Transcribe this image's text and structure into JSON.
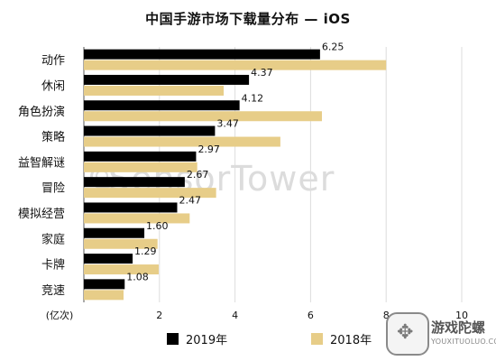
{
  "chart_data": {
    "type": "bar",
    "orientation": "horizontal",
    "title": "中国手游市场下载量分布 — iOS",
    "xlabel": "(亿次)",
    "categories": [
      "动作",
      "休闲",
      "角色扮演",
      "策略",
      "益智解谜",
      "冒险",
      "模拟经营",
      "家庭",
      "卡牌",
      "竞速"
    ],
    "series": [
      {
        "name": "2019年",
        "color": "#000000",
        "values": [
          6.25,
          4.37,
          4.12,
          3.47,
          2.97,
          2.67,
          2.47,
          1.6,
          1.29,
          1.08
        ],
        "labels": [
          "6.25",
          "4.37",
          "4.12",
          "3.47",
          "2.97",
          "2.67",
          "2.47",
          "1.60",
          "1.29",
          "1.08"
        ]
      },
      {
        "name": "2018年",
        "color": "#e7cd88",
        "values": [
          8.0,
          3.7,
          6.3,
          5.2,
          3.0,
          3.5,
          2.8,
          1.95,
          1.98,
          1.05
        ]
      }
    ],
    "xlim": [
      0,
      10
    ],
    "xticks": [
      2,
      4,
      6,
      8,
      10
    ],
    "xtick_labels": [
      "2",
      "4",
      "6",
      "8",
      "10"
    ],
    "grid": true,
    "legend_position": "bottom"
  },
  "watermark": "SensorTower",
  "logo": {
    "cn": "游戏陀螺",
    "en": "YOUXITUOLUO.COM"
  }
}
